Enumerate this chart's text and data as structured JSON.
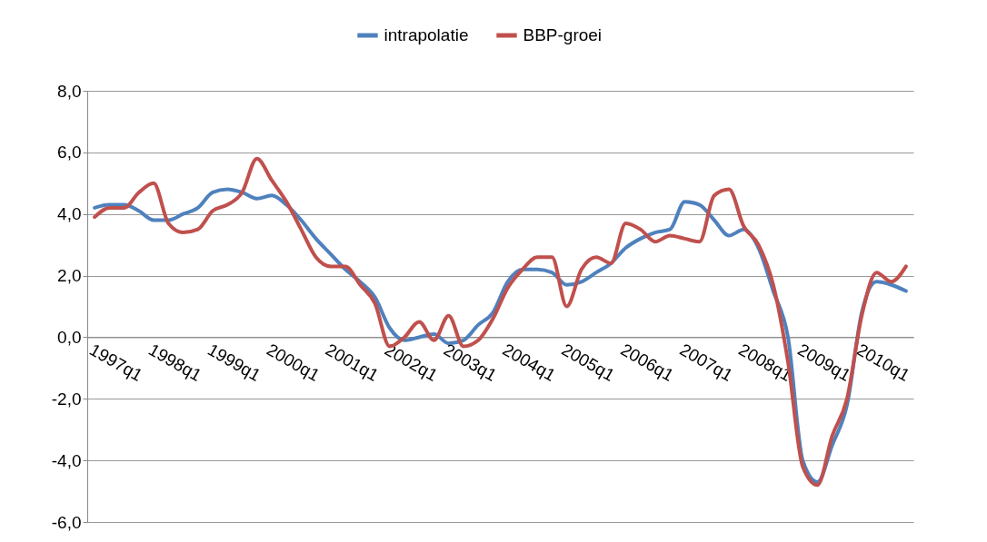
{
  "chart_data": {
    "type": "line",
    "categories": [
      "1997q1",
      null,
      null,
      null,
      "1998q1",
      null,
      null,
      null,
      "1999q1",
      null,
      null,
      null,
      "2000q1",
      null,
      null,
      null,
      "2001q1",
      null,
      null,
      null,
      "2002q1",
      null,
      null,
      null,
      "2003q1",
      null,
      null,
      null,
      "2004q1",
      null,
      null,
      null,
      "2005q1",
      null,
      null,
      null,
      "2006q1",
      null,
      null,
      null,
      "2007q1",
      null,
      null,
      null,
      "2008q1",
      null,
      null,
      null,
      "2009q1",
      null,
      null,
      null,
      "2010q1",
      null,
      null,
      null
    ],
    "series": [
      {
        "name": "intrapolatie",
        "color": "#4f81bd",
        "values": [
          4.2,
          4.3,
          4.3,
          4.1,
          3.8,
          3.8,
          4.0,
          4.2,
          4.7,
          4.8,
          4.7,
          4.5,
          4.6,
          4.3,
          3.8,
          3.2,
          2.7,
          2.2,
          1.8,
          1.3,
          0.3,
          -0.1,
          0.0,
          0.1,
          -0.2,
          -0.1,
          0.4,
          0.8,
          1.8,
          2.2,
          2.2,
          2.1,
          1.7,
          1.8,
          2.1,
          2.4,
          2.9,
          3.2,
          3.4,
          3.5,
          4.4,
          4.3,
          3.8,
          3.3,
          3.5,
          2.9,
          1.5,
          0.0,
          -4.0,
          -4.7,
          -3.5,
          -2.2,
          0.8,
          1.8,
          1.7,
          1.5
        ]
      },
      {
        "name": "BBP-groei",
        "color": "#c0504d",
        "values": [
          3.9,
          4.2,
          4.2,
          4.7,
          5.0,
          3.7,
          3.4,
          3.5,
          4.1,
          4.3,
          4.7,
          5.8,
          5.1,
          4.4,
          3.5,
          2.6,
          2.3,
          2.3,
          1.7,
          1.1,
          -0.3,
          0.0,
          0.5,
          -0.1,
          0.7,
          -0.3,
          -0.1,
          0.6,
          1.6,
          2.2,
          2.6,
          2.6,
          1.0,
          2.2,
          2.6,
          2.4,
          3.7,
          3.5,
          3.1,
          3.3,
          3.2,
          3.1,
          4.6,
          4.8,
          3.6,
          3.0,
          1.7,
          -0.8,
          -4.2,
          -4.8,
          -3.2,
          -2.0,
          0.7,
          2.1,
          1.8,
          2.3
        ]
      }
    ],
    "ylim": [
      -6,
      8
    ],
    "yticks": [
      {
        "value": -6,
        "label": "-6,0"
      },
      {
        "value": -4,
        "label": "-4,0"
      },
      {
        "value": -2,
        "label": "-2,0"
      },
      {
        "value": 0,
        "label": "0,0"
      },
      {
        "value": 2,
        "label": "2,0"
      },
      {
        "value": 4,
        "label": "4,0"
      },
      {
        "value": 6,
        "label": "6,0"
      },
      {
        "value": 8,
        "label": "8,0"
      }
    ],
    "grid": "y",
    "legend": "top",
    "marker": "none",
    "line_style": "solid"
  }
}
